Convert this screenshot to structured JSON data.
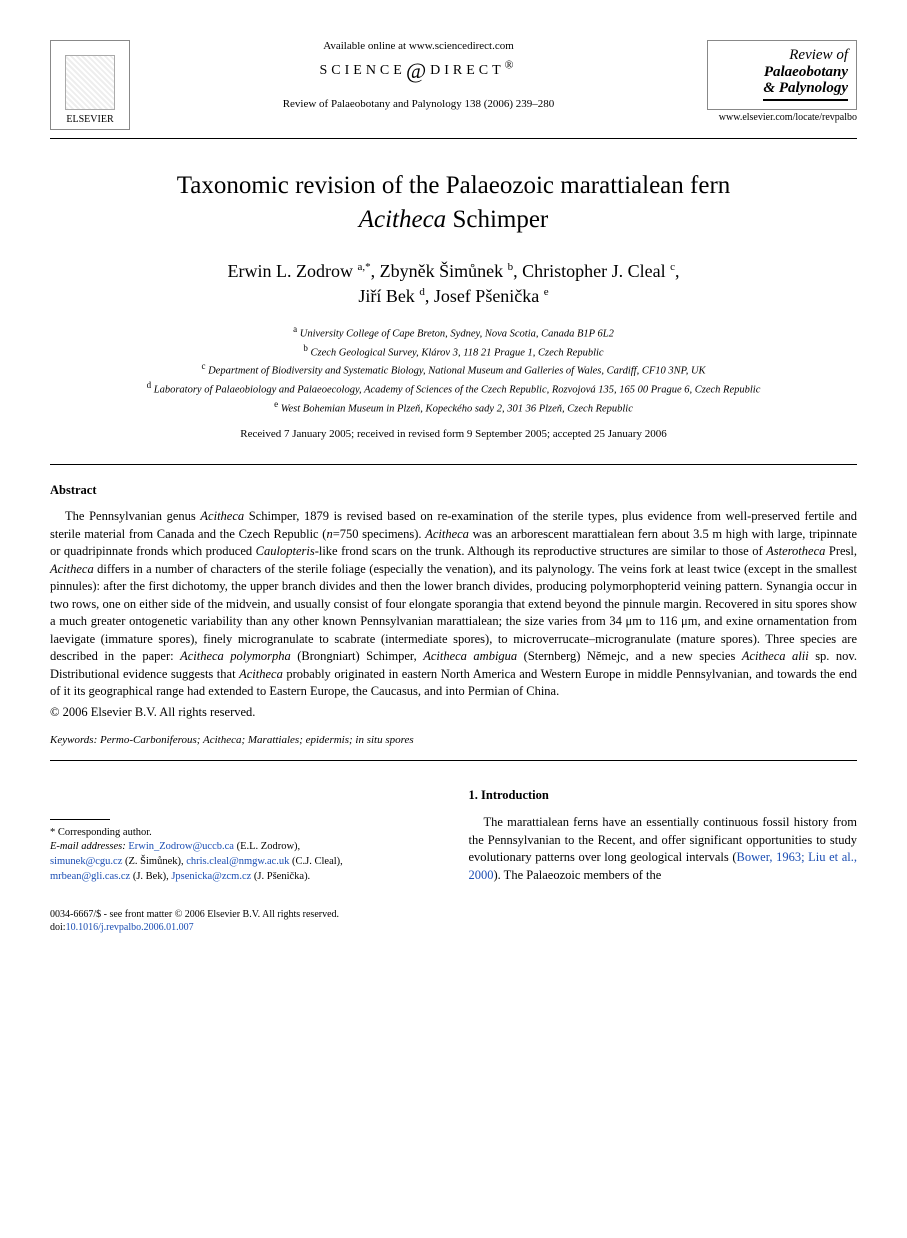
{
  "header": {
    "publisher_name": "ELSEVIER",
    "available_text": "Available online at www.sciencedirect.com",
    "sd_brand_left": "SCIENCE",
    "sd_brand_right": "DIRECT",
    "citation": "Review of Palaeobotany and Palynology 138 (2006) 239–280",
    "journal_line1": "Review of",
    "journal_line2": "Palaeobotany",
    "journal_line3": "& Palynology",
    "journal_url": "www.elsevier.com/locate/revpalbo"
  },
  "title": {
    "line1": "Taxonomic revision of the Palaeozoic marattialean fern",
    "line2_pre": "",
    "line2_italic": "Acitheca",
    "line2_post": " Schimper"
  },
  "authors": {
    "a1_name": "Erwin L. Zodrow ",
    "a1_sup": "a,*",
    "a2_name": ", Zbyněk Šimůnek ",
    "a2_sup": "b",
    "a3_name": ", Christopher J. Cleal ",
    "a3_sup": "c",
    "a4_name": "Jiří Bek ",
    "a4_sup": "d",
    "a5_name": ", Josef Pšenička ",
    "a5_sup": "e"
  },
  "affiliations": {
    "a": "University College of Cape Breton, Sydney, Nova Scotia, Canada B1P 6L2",
    "b": "Czech Geological Survey, Klárov 3, 118 21 Prague 1, Czech Republic",
    "c": "Department of Biodiversity and Systematic Biology, National Museum and Galleries of Wales, Cardiff, CF10 3NP, UK",
    "d": "Laboratory of Palaeobiology and Palaeoecology, Academy of Sciences of the Czech Republic, Rozvojová 135, 165 00 Prague 6, Czech Republic",
    "e": "West Bohemian Museum in Plzeň, Kopeckého sady 2, 301 36 Plzeň, Czech Republic"
  },
  "dates": "Received 7 January 2005; received in revised form 9 September 2005; accepted 25 January 2006",
  "abstract": {
    "heading": "Abstract",
    "body_html": "The Pennsylvanian genus <span class=\"italic\">Acitheca</span> Schimper, 1879 is revised based on re-examination of the sterile types, plus evidence from well-preserved fertile and sterile material from Canada and the Czech Republic (<span class=\"italic\">n</span>=750 specimens). <span class=\"italic\">Acitheca</span> was an arborescent marattialean fern about 3.5 m high with large, tripinnate or quadripinnate fronds which produced <span class=\"italic\">Caulopteris</span>-like frond scars on the trunk. Although its reproductive structures are similar to those of <span class=\"italic\">Asterotheca</span> Presl, <span class=\"italic\">Acitheca</span> differs in a number of characters of the sterile foliage (especially the venation), and its palynology. The veins fork at least twice (except in the smallest pinnules): after the first dichotomy, the upper branch divides and then the lower branch divides, producing polymorphopterid veining pattern. Synangia occur in two rows, one on either side of the midvein, and usually consist of four elongate sporangia that extend beyond the pinnule margin. Recovered in situ spores show a much greater ontogenetic variability than any other known Pennsylvanian marattialean; the size varies from 34 μm to 116 μm, and exine ornamentation from laevigate (immature spores), finely microgranulate to scabrate (intermediate spores), to microverrucate–microgranulate (mature spores). Three species are described in the paper: <span class=\"italic\">Acitheca polymorpha</span> (Brongniart) Schimper, <span class=\"italic\">Acitheca ambigua</span> (Sternberg) Němejc, and a new species <span class=\"italic\">Acitheca alii</span> sp. nov. Distributional evidence suggests that <span class=\"italic\">Acitheca</span> probably originated in eastern North America and Western Europe in middle Pennsylvanian, and towards the end of it its geographical range had extended to Eastern Europe, the Caucasus, and into Permian of China.",
    "copyright": "© 2006 Elsevier B.V. All rights reserved."
  },
  "keywords": {
    "label": "Keywords:",
    "text": " Permo-Carboniferous; Acitheca; Marattiales; epidermis; in situ spores"
  },
  "footnote": {
    "corresponding": "* Corresponding author.",
    "email_label": "E-mail addresses:",
    "e1": "Erwin_Zodrow@uccb.ca",
    "e1_who": " (E.L. Zodrow),",
    "e2": "simunek@cgu.cz",
    "e2_who": " (Z. Šimůnek), ",
    "e3": "chris.cleal@nmgw.ac.uk",
    "e3_who": " (C.J. Cleal),",
    "e4": "mrbean@gli.cas.cz",
    "e4_who": " (J. Bek), ",
    "e5": "Jpsenicka@zcm.cz",
    "e5_who": " (J. Pšenička)."
  },
  "intro": {
    "heading": "1. Introduction",
    "body_pre": "The marattialean ferns have an essentially continuous fossil history from the Pennsylvanian to the Recent, and offer significant opportunities to study evolutionary patterns over long geological intervals (",
    "cite": "Bower, 1963; Liu et al., 2000",
    "body_post": "). The Palaeozoic members of the"
  },
  "bottom": {
    "issn_line": "0034-6667/$ - see front matter © 2006 Elsevier B.V. All rights reserved.",
    "doi_label": "doi:",
    "doi": "10.1016/j.revpalbo.2006.01.007"
  }
}
